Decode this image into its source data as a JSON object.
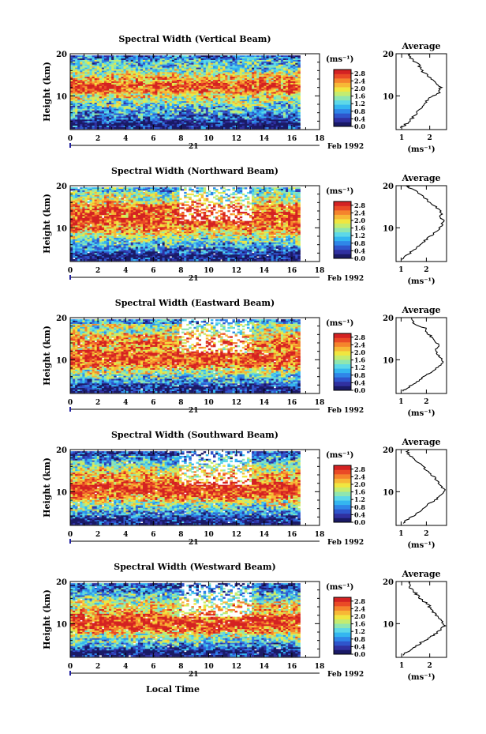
{
  "figure": {
    "time_axis_label": "Local Time",
    "unit_label": "(ms⁻¹)",
    "average_title": "Average",
    "date_day": "21",
    "date_month_year": "Feb 1992",
    "colorbar_ticks": [
      "0.0",
      "0.4",
      "0.8",
      "1.2",
      "1.6",
      "2.0",
      "2.4",
      "2.8"
    ],
    "palette": [
      "#1a1a66",
      "#3030a0",
      "#2f55cc",
      "#2f86e8",
      "#34b6f0",
      "#5dd8e8",
      "#8fe6b0",
      "#c4ec70",
      "#f0e640",
      "#f7b836",
      "#f5842c",
      "#ea4a26",
      "#d42222"
    ]
  },
  "chart_data": [
    {
      "type": "heatmap",
      "title": "Spectral Width (Vertical Beam)",
      "xlabel": "",
      "ylabel": "Height (km)",
      "xlim": [
        0,
        18
      ],
      "ylim": [
        2,
        20
      ],
      "xticks": [
        "0",
        "2",
        "4",
        "6",
        "8",
        "10",
        "12",
        "14",
        "16",
        "18"
      ],
      "yticks": [
        "10",
        "20"
      ],
      "data_end_hour": 16.6,
      "colorbar_range": [
        0.0,
        3.0
      ],
      "profile_height_km": [
        3,
        4,
        5,
        6,
        7,
        8,
        9,
        10,
        11,
        12,
        13,
        14,
        15,
        16,
        17,
        18,
        19,
        20
      ],
      "average": {
        "title": "Average",
        "xlabel": "(ms⁻¹)",
        "xticks": [
          "1",
          "2"
        ],
        "xlim": [
          0.8,
          2.6
        ],
        "values_ms": [
          1.0,
          1.2,
          1.35,
          1.5,
          1.62,
          1.72,
          1.85,
          2.0,
          2.3,
          2.4,
          2.35,
          2.2,
          2.0,
          1.8,
          1.65,
          1.6,
          1.4,
          1.25
        ]
      }
    },
    {
      "type": "heatmap",
      "title": "Spectral Width (Northward Beam)",
      "xlabel": "",
      "ylabel": "Height (km)",
      "xlim": [
        0,
        18
      ],
      "ylim": [
        2,
        20
      ],
      "xticks": [
        "0",
        "2",
        "4",
        "6",
        "8",
        "10",
        "12",
        "14",
        "16",
        "18"
      ],
      "yticks": [
        "10",
        "20"
      ],
      "data_end_hour": 16.6,
      "colorbar_range": [
        0.0,
        3.0
      ],
      "profile_height_km": [
        3,
        4,
        5,
        6,
        7,
        8,
        9,
        10,
        11,
        12,
        13,
        14,
        15,
        16,
        17,
        18,
        19,
        20
      ],
      "average": {
        "title": "Average",
        "xlabel": "(ms⁻¹)",
        "xticks": [
          "1",
          "2"
        ],
        "xlim": [
          0.8,
          2.8
        ],
        "values_ms": [
          1.05,
          1.25,
          1.45,
          1.65,
          1.85,
          2.05,
          2.25,
          2.45,
          2.6,
          2.7,
          2.55,
          2.6,
          2.5,
          2.2,
          2.05,
          1.9,
          1.65,
          1.3
        ]
      }
    },
    {
      "type": "heatmap",
      "title": "Spectral Width (Eastward Beam)",
      "xlabel": "",
      "ylabel": "Height (km)",
      "xlim": [
        0,
        18
      ],
      "ylim": [
        2,
        20
      ],
      "xticks": [
        "0",
        "2",
        "4",
        "6",
        "8",
        "10",
        "12",
        "14",
        "16",
        "18"
      ],
      "yticks": [
        "10",
        "20"
      ],
      "data_end_hour": 16.6,
      "colorbar_range": [
        0.0,
        3.0
      ],
      "profile_height_km": [
        3,
        4,
        5,
        6,
        7,
        8,
        9,
        10,
        11,
        12,
        13,
        14,
        15,
        16,
        17,
        18,
        19,
        20
      ],
      "average": {
        "title": "Average",
        "xlabel": "(ms⁻¹)",
        "xticks": [
          "1",
          "2"
        ],
        "xlim": [
          0.8,
          2.8
        ],
        "values_ms": [
          1.05,
          1.3,
          1.55,
          1.8,
          2.05,
          2.3,
          2.5,
          2.65,
          2.55,
          2.4,
          2.35,
          2.5,
          2.3,
          2.2,
          2.0,
          1.95,
          1.55,
          1.4
        ]
      }
    },
    {
      "type": "heatmap",
      "title": "Spectral Width (Southward Beam)",
      "xlabel": "",
      "ylabel": "Height (km)",
      "xlim": [
        0,
        18
      ],
      "ylim": [
        2,
        20
      ],
      "xticks": [
        "0",
        "2",
        "4",
        "6",
        "8",
        "10",
        "12",
        "14",
        "16",
        "18"
      ],
      "yticks": [
        "10",
        "20"
      ],
      "data_end_hour": 16.6,
      "colorbar_range": [
        0.0,
        3.0
      ],
      "profile_height_km": [
        3,
        4,
        5,
        6,
        7,
        8,
        9,
        10,
        11,
        12,
        13,
        14,
        15,
        16,
        17,
        18,
        19,
        20
      ],
      "average": {
        "title": "Average",
        "xlabel": "(ms⁻¹)",
        "xticks": [
          "1",
          "2"
        ],
        "xlim": [
          0.8,
          2.8
        ],
        "values_ms": [
          1.05,
          1.3,
          1.55,
          1.8,
          2.0,
          2.2,
          2.45,
          2.65,
          2.7,
          2.6,
          2.4,
          2.3,
          2.1,
          1.95,
          1.75,
          1.55,
          1.35,
          1.25
        ]
      }
    },
    {
      "type": "heatmap",
      "title": "Spectral Width (Westward Beam)",
      "xlabel": "Local Time",
      "ylabel": "Height (km)",
      "xlim": [
        0,
        18
      ],
      "ylim": [
        2,
        20
      ],
      "xticks": [
        "0",
        "2",
        "4",
        "6",
        "8",
        "10",
        "12",
        "14",
        "16",
        "18"
      ],
      "yticks": [
        "10",
        "20"
      ],
      "data_end_hour": 16.6,
      "colorbar_range": [
        0.0,
        3.0
      ],
      "profile_height_km": [
        3,
        4,
        5,
        6,
        7,
        8,
        9,
        10,
        11,
        12,
        13,
        14,
        15,
        16,
        17,
        18,
        19,
        20
      ],
      "average": {
        "title": "Average",
        "xlabel": "(ms⁻¹)",
        "xticks": [
          "1",
          "2"
        ],
        "xlim": [
          0.8,
          2.6
        ],
        "values_ms": [
          1.0,
          1.25,
          1.5,
          1.7,
          1.95,
          2.2,
          2.4,
          2.5,
          2.45,
          2.3,
          2.15,
          2.05,
          1.95,
          1.75,
          1.6,
          1.45,
          1.3,
          1.3
        ]
      }
    }
  ]
}
